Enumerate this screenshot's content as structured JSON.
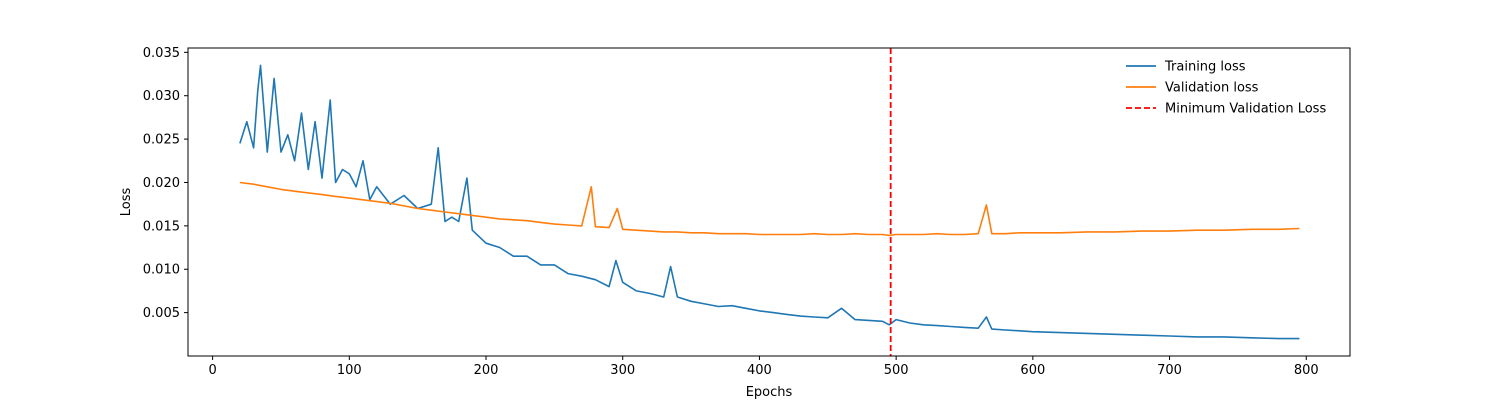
{
  "chart_data": {
    "type": "line",
    "title": "",
    "xlabel": "Epochs",
    "ylabel": "Loss",
    "xlim": [
      -18,
      832
    ],
    "ylim": [
      0,
      0.0355
    ],
    "xticks": [
      0,
      100,
      200,
      300,
      400,
      500,
      600,
      700,
      800
    ],
    "xtick_labels": [
      "0",
      "100",
      "200",
      "300",
      "400",
      "500",
      "600",
      "700",
      "800"
    ],
    "yticks": [
      0.005,
      0.01,
      0.015,
      0.02,
      0.025,
      0.03,
      0.035
    ],
    "ytick_labels": [
      "0.005",
      "0.010",
      "0.015",
      "0.020",
      "0.025",
      "0.030",
      "0.035"
    ],
    "grid": false,
    "legend_position": "top-right",
    "series": [
      {
        "name": "Training loss",
        "color": "#1f77b4",
        "x": [
          20,
          25,
          30,
          33,
          35,
          40,
          45,
          50,
          55,
          60,
          65,
          70,
          75,
          80,
          86,
          90,
          95,
          100,
          105,
          110,
          115,
          120,
          130,
          140,
          150,
          160,
          165,
          170,
          175,
          180,
          186,
          190,
          200,
          210,
          220,
          230,
          240,
          250,
          260,
          270,
          280,
          290,
          295,
          300,
          310,
          320,
          330,
          335,
          340,
          350,
          360,
          370,
          380,
          390,
          400,
          410,
          420,
          430,
          440,
          450,
          460,
          470,
          480,
          490,
          495,
          500,
          510,
          520,
          530,
          540,
          550,
          560,
          566,
          570,
          580,
          590,
          600,
          620,
          640,
          660,
          680,
          700,
          720,
          740,
          760,
          780,
          795
        ],
        "y": [
          0.0245,
          0.027,
          0.024,
          0.0305,
          0.0335,
          0.0235,
          0.032,
          0.0235,
          0.0255,
          0.0225,
          0.028,
          0.0215,
          0.027,
          0.0205,
          0.0295,
          0.02,
          0.0215,
          0.021,
          0.0195,
          0.0225,
          0.018,
          0.0195,
          0.0175,
          0.0185,
          0.017,
          0.0175,
          0.024,
          0.0155,
          0.016,
          0.0155,
          0.0205,
          0.0145,
          0.013,
          0.0125,
          0.0115,
          0.0115,
          0.0105,
          0.0105,
          0.0095,
          0.0092,
          0.0088,
          0.008,
          0.011,
          0.0085,
          0.0075,
          0.0072,
          0.0068,
          0.0103,
          0.0068,
          0.0063,
          0.006,
          0.0057,
          0.0058,
          0.0055,
          0.0052,
          0.005,
          0.0048,
          0.0046,
          0.0045,
          0.0044,
          0.0055,
          0.0042,
          0.0041,
          0.004,
          0.0036,
          0.0042,
          0.0038,
          0.0036,
          0.0035,
          0.0034,
          0.0033,
          0.0032,
          0.0045,
          0.0031,
          0.003,
          0.0029,
          0.0028,
          0.0027,
          0.0026,
          0.0025,
          0.0024,
          0.0023,
          0.0022,
          0.0022,
          0.0021,
          0.002,
          0.002
        ]
      },
      {
        "name": "Validation loss",
        "color": "#ff7f0e",
        "x": [
          20,
          30,
          40,
          50,
          60,
          70,
          80,
          90,
          100,
          110,
          120,
          130,
          140,
          150,
          160,
          170,
          180,
          190,
          200,
          210,
          220,
          230,
          240,
          250,
          260,
          270,
          277,
          280,
          290,
          296,
          300,
          310,
          320,
          330,
          340,
          350,
          360,
          370,
          380,
          390,
          400,
          410,
          420,
          430,
          440,
          450,
          460,
          470,
          480,
          490,
          495,
          500,
          510,
          520,
          530,
          540,
          550,
          560,
          566,
          570,
          580,
          590,
          600,
          620,
          640,
          660,
          680,
          700,
          720,
          740,
          760,
          780,
          795
        ],
        "y": [
          0.02,
          0.0198,
          0.0195,
          0.0192,
          0.019,
          0.0188,
          0.0186,
          0.0184,
          0.0182,
          0.018,
          0.0178,
          0.0176,
          0.0173,
          0.017,
          0.0168,
          0.0166,
          0.0164,
          0.0162,
          0.016,
          0.0158,
          0.0157,
          0.0156,
          0.0154,
          0.0152,
          0.0151,
          0.015,
          0.0195,
          0.0149,
          0.0148,
          0.017,
          0.0146,
          0.0145,
          0.0144,
          0.0143,
          0.0143,
          0.0142,
          0.0142,
          0.0141,
          0.0141,
          0.0141,
          0.014,
          0.014,
          0.014,
          0.014,
          0.0141,
          0.014,
          0.014,
          0.0141,
          0.014,
          0.014,
          0.0139,
          0.014,
          0.014,
          0.014,
          0.0141,
          0.014,
          0.014,
          0.0141,
          0.0174,
          0.0141,
          0.0141,
          0.0142,
          0.0142,
          0.0142,
          0.0143,
          0.0143,
          0.0144,
          0.0144,
          0.0145,
          0.0145,
          0.0146,
          0.0146,
          0.0147
        ]
      }
    ],
    "vline": {
      "name": "Minimum Validation Loss",
      "x": 496,
      "color": "#ff0000",
      "style": "dashed"
    }
  }
}
